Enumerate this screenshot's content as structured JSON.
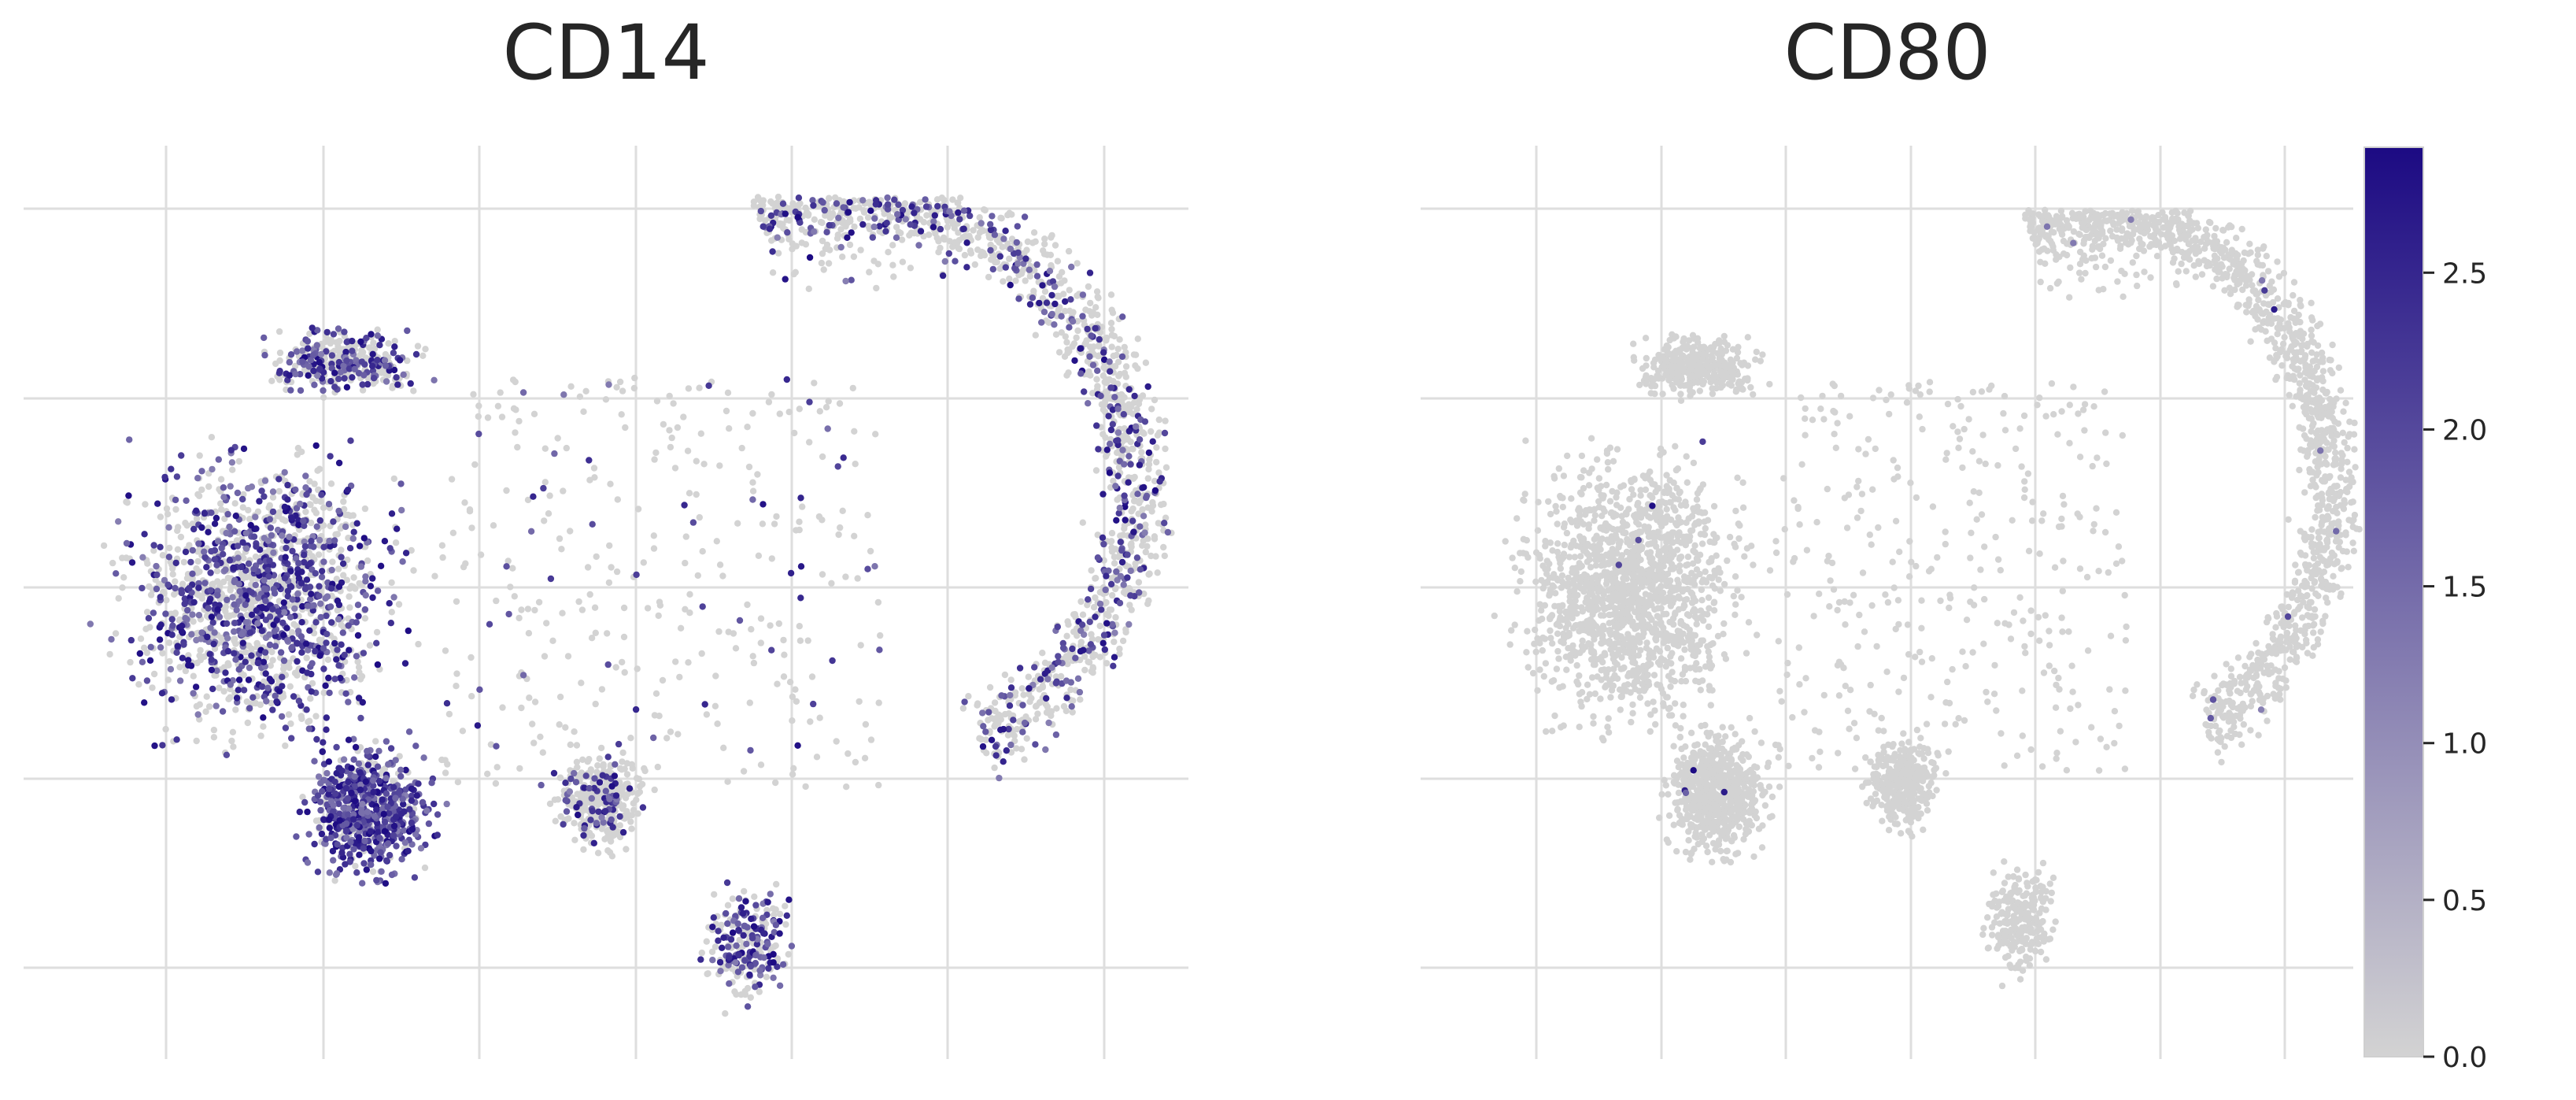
{
  "chart_data": [
    {
      "type": "scatter",
      "title": "CD14",
      "xlabel": "",
      "ylabel": "",
      "grid": true,
      "point_color_low": "#d3d3d3",
      "point_color_high": "#1c0a83",
      "value_range": [
        0,
        2.9
      ],
      "description_of_points": "UMAP-style embedding of several thousand cells; each point colored by CD14 expression (0 = light grey, high = dark indigo). High expression concentrated in the lower-left cluster and spread through the left and upper-right clusters.",
      "clusters": [
        {
          "name": "left-large",
          "mean_expression": 0.9
        },
        {
          "name": "left-top-cap",
          "mean_expression": 0.8
        },
        {
          "name": "left-bottom-dense",
          "mean_expression": 1.4
        },
        {
          "name": "right-arc",
          "mean_expression": 0.5
        },
        {
          "name": "center-small",
          "mean_expression": 0.4
        },
        {
          "name": "bottom-tail",
          "mean_expression": 0.9
        }
      ]
    },
    {
      "type": "scatter",
      "title": "CD80",
      "xlabel": "",
      "ylabel": "",
      "grid": true,
      "point_color_low": "#d3d3d3",
      "point_color_high": "#1c0a83",
      "value_range": [
        0,
        2.9
      ],
      "description_of_points": "Same embedding colored by CD80 expression; nearly all cells are light grey with a handful of isolated dark points.",
      "clusters": [
        {
          "name": "left-large",
          "mean_expression": 0.01
        },
        {
          "name": "left-top-cap",
          "mean_expression": 0.0
        },
        {
          "name": "left-bottom-dense",
          "mean_expression": 0.02
        },
        {
          "name": "right-arc",
          "mean_expression": 0.01
        },
        {
          "name": "center-small",
          "mean_expression": 0.0
        },
        {
          "name": "bottom-tail",
          "mean_expression": 0.0
        }
      ]
    }
  ],
  "colorbar": {
    "ticks": [
      "0.0",
      "0.5",
      "1.0",
      "1.5",
      "2.0",
      "2.5"
    ],
    "tick_values": [
      0.0,
      0.5,
      1.0,
      1.5,
      2.0,
      2.5
    ],
    "min": 0.0,
    "max": 2.9,
    "color_low": "#d3d3d3",
    "color_high": "#1c0a83"
  },
  "colors": {
    "grid": "#dedede",
    "background": "#ffffff",
    "text": "#262626"
  }
}
